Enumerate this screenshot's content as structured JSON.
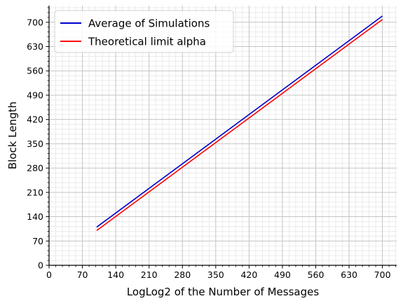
{
  "chart_data": {
    "type": "line",
    "title": "",
    "xlabel": "LogLog2 of the Number of Messages",
    "ylabel": "Block Length",
    "xlim": [
      0,
      730
    ],
    "ylim": [
      0,
      748
    ],
    "xticks": [
      0,
      70,
      140,
      210,
      280,
      350,
      420,
      490,
      560,
      630,
      700
    ],
    "yticks": [
      0,
      70,
      140,
      210,
      280,
      350,
      420,
      490,
      560,
      630,
      700
    ],
    "x_minor_step": 14,
    "y_minor_step": 14,
    "grid": true,
    "legend_position": "top-left",
    "series": [
      {
        "name": "Average of Simulations",
        "color": "#0000cc",
        "x": [
          100,
          700
        ],
        "y": [
          110,
          718
        ]
      },
      {
        "name": "Theoretical limit alpha",
        "color": "#ff0000",
        "x": [
          100,
          700
        ],
        "y": [
          100,
          708
        ]
      }
    ]
  }
}
